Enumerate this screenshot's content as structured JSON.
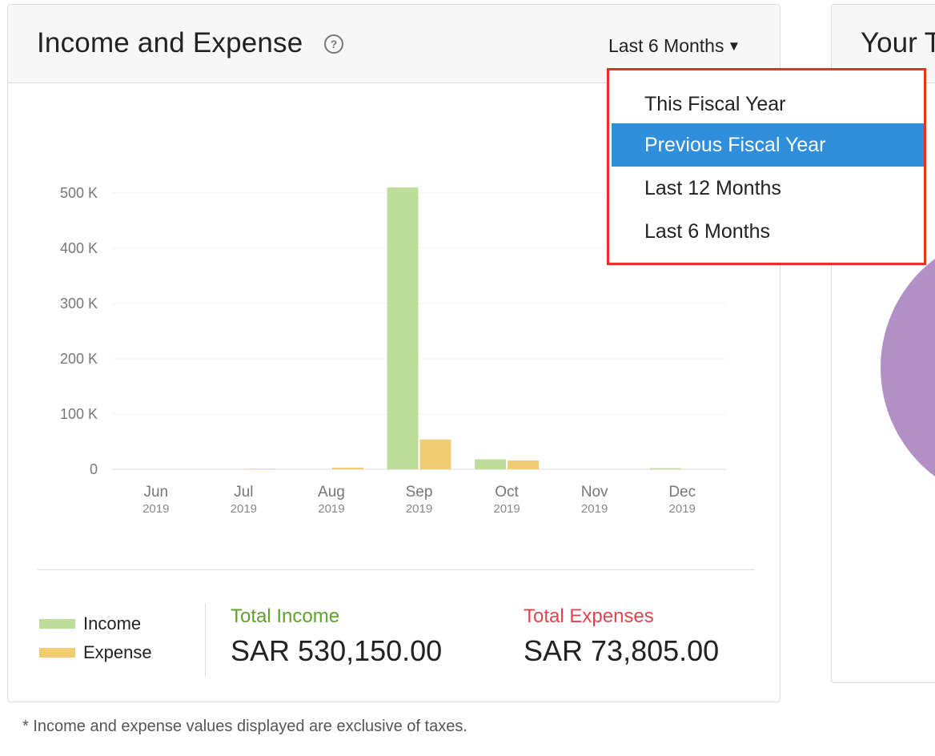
{
  "card": {
    "title": "Income and Expense",
    "help_icon": "question-circle-icon",
    "period_selected": "Last 6 Months",
    "period_caret": "▼"
  },
  "dropdown": {
    "options": [
      "This Fiscal Year",
      "Previous Fiscal Year",
      "Last 12 Months",
      "Last 6 Months"
    ],
    "highlighted": "Previous Fiscal Year"
  },
  "chart_data": {
    "type": "bar",
    "categories": [
      "Jun",
      "Jul",
      "Aug",
      "Sep",
      "Oct",
      "Nov",
      "Dec"
    ],
    "category_years": [
      "2019",
      "2019",
      "2019",
      "2019",
      "2019",
      "2019",
      "2019"
    ],
    "series": [
      {
        "name": "Income",
        "color": "#bddd9a",
        "values": [
          0,
          0,
          0,
          510000,
          18000,
          0,
          2000
        ]
      },
      {
        "name": "Expense",
        "color": "#f2cc73",
        "values": [
          0,
          1000,
          3000,
          54000,
          16000,
          0,
          0
        ]
      }
    ],
    "yticks": [
      "0",
      "100 K",
      "200 K",
      "300 K",
      "400 K",
      "500 K"
    ],
    "ytick_values": [
      0,
      100000,
      200000,
      300000,
      400000,
      500000
    ],
    "ylim": [
      0,
      500000
    ],
    "grid": true
  },
  "legend": {
    "income_label": "Income",
    "expense_label": "Expense",
    "income_color": "#bddd9a",
    "expense_color": "#f2cc73"
  },
  "totals": {
    "income_label": "Total Income",
    "income_value": "SAR 530,150.00",
    "expense_label": "Total Expenses",
    "expense_value": "SAR 73,805.00"
  },
  "footnote": "* Income and expense values displayed are exclusive of taxes.",
  "side_card": {
    "title": "Your T",
    "pie_color": "#b28fc5"
  }
}
